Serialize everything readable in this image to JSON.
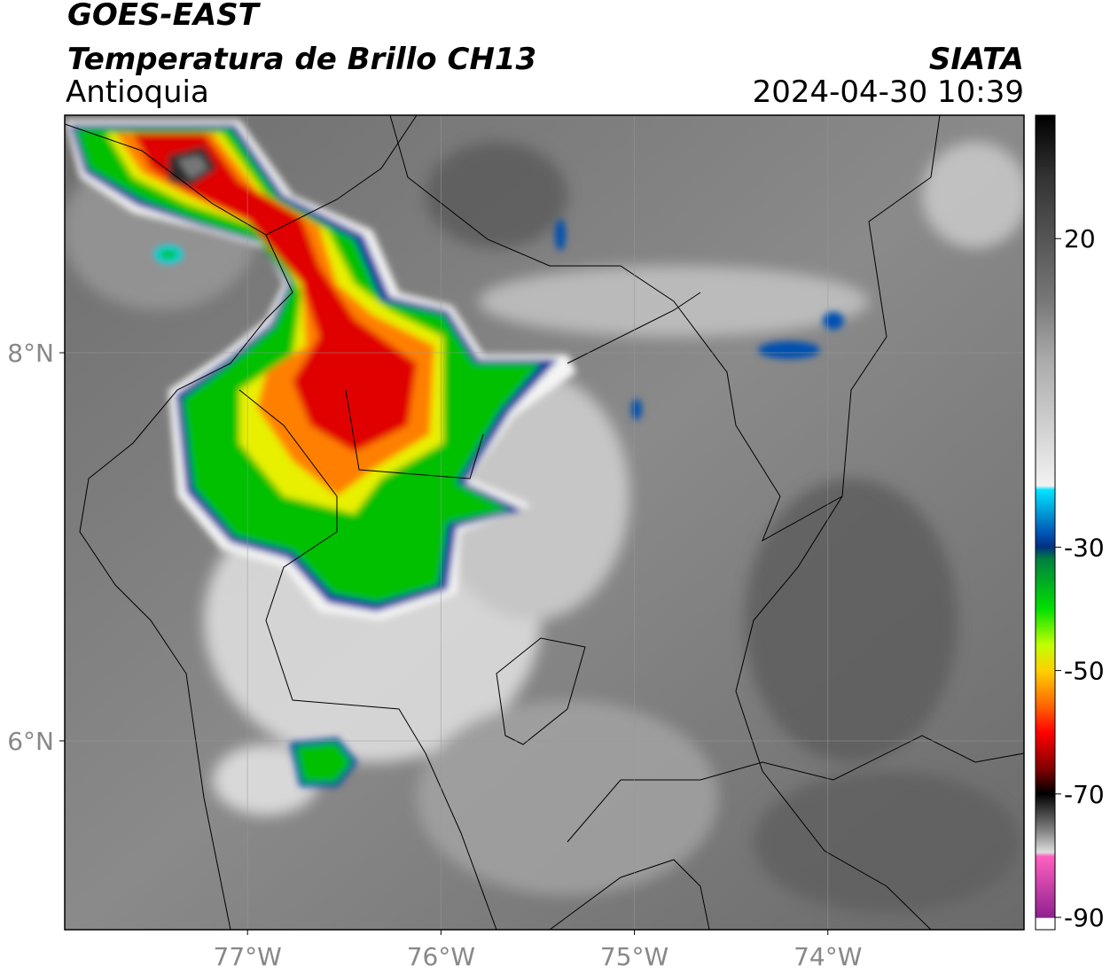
{
  "header": {
    "title": "GOES-EAST",
    "subtitle": "Temperatura de Brillo CH13",
    "region": "Antioquia",
    "source": "SIATA",
    "datetime": "2024-04-30 10:39"
  },
  "map": {
    "xlim": [
      -77.945,
      -72.986
    ],
    "ylim": [
      5.027,
      9.224
    ],
    "xticks": [
      {
        "value": -77,
        "label": "77°W"
      },
      {
        "value": -76,
        "label": "76°W"
      },
      {
        "value": -75,
        "label": "75°W"
      },
      {
        "value": -74,
        "label": "74°W"
      }
    ],
    "yticks": [
      {
        "value": 8,
        "label": "8°N"
      },
      {
        "value": 6,
        "label": "6°N"
      }
    ],
    "grid": true
  },
  "colorbar": {
    "lim": [
      -92,
      40
    ],
    "ticks": [
      20,
      -30,
      -50,
      -70,
      -90
    ]
  }
}
